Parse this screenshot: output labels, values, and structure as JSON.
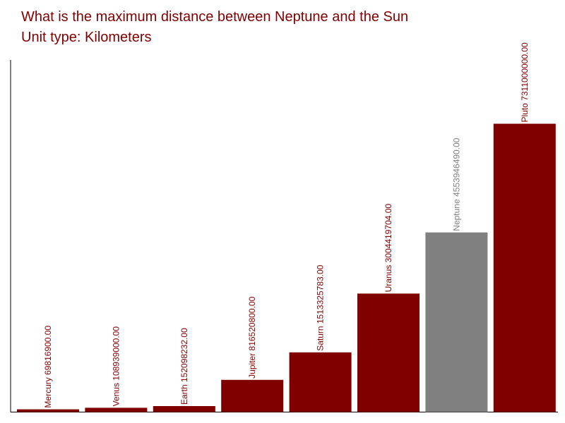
{
  "chart_data": {
    "type": "bar",
    "title": "What is the maximum distance between Neptune and the Sun",
    "subtitle": "Unit type: Kilometers",
    "categories": [
      "Mercury",
      "Venus",
      "Earth",
      "Jupiter",
      "Saturn",
      "Uranus",
      "Neptune",
      "Pluto"
    ],
    "values": [
      69816900.0,
      108939000.0,
      152098232.0,
      816520800.0,
      1513325783.0,
      3004419704.0,
      4553946490.0,
      7311000000.0
    ],
    "labels": [
      "Mercury 69816900.00",
      "Venus 108939000.00",
      "Earth 152098232.00",
      "Jupiter 816520800.00",
      "Saturn 1513325783.00",
      "Uranus 3004419704.00",
      "Neptune 4553946490.00",
      "Pluto 7311000000.00"
    ],
    "highlight": "Neptune",
    "ylim": [
      0,
      10300000000
    ],
    "grid": false,
    "legend": "none",
    "xlabel": "",
    "ylabel": ""
  },
  "colors": {
    "bar": "#800000",
    "highlight_bar": "#808080",
    "title": "#800000",
    "axis": "#000000"
  }
}
